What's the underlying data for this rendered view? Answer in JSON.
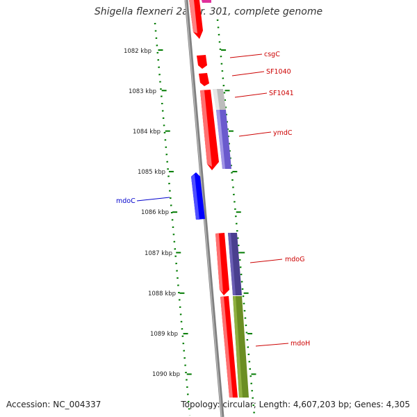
{
  "title": "Shigella flexneri 2a str. 301, complete genome",
  "accession": "Accession: NC_004337",
  "topology": "Topology: circular; Length: 4,607,203 bp; Genes: 4,305",
  "colors": {
    "forward_gene": "#ff0000",
    "reverse_gene": "#0000ff",
    "backbone": "#808080",
    "tick": "#007a00",
    "label_forward": "#cc0000",
    "label_reverse": "#0000cc"
  },
  "kbp_labels": [
    "1082 kbp",
    "1083 kbp",
    "1084 kbp",
    "1085 kbp",
    "1086 kbp",
    "1087 kbp",
    "1088 kbp",
    "1089 kbp",
    "1090 kbp"
  ],
  "genes": [
    {
      "name": "csgC",
      "strand": "forward"
    },
    {
      "name": "SF1040",
      "strand": "forward"
    },
    {
      "name": "SF1041",
      "strand": "forward"
    },
    {
      "name": "ymdC",
      "strand": "forward"
    },
    {
      "name": "mdoC",
      "strand": "reverse"
    },
    {
      "name": "mdoG",
      "strand": "forward"
    },
    {
      "name": "mdoH",
      "strand": "forward"
    }
  ]
}
